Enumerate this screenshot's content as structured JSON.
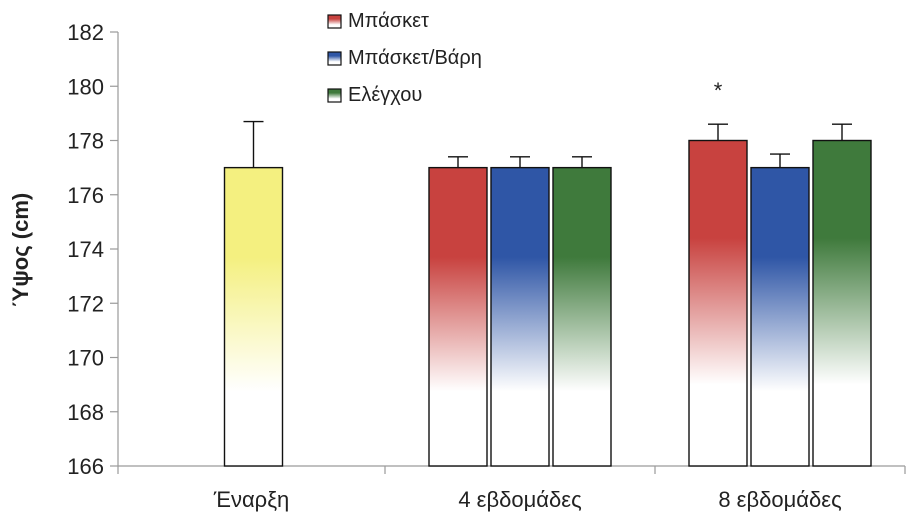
{
  "chart_data": {
    "type": "bar",
    "ylabel": "Ύψος (cm)",
    "ylim": [
      166,
      182
    ],
    "yticks": [
      "166",
      "168",
      "170",
      "172",
      "174",
      "176",
      "178",
      "180",
      "182"
    ],
    "categories": [
      "Έναρξη",
      "4 εβδομάδες",
      "8 εβδομάδες"
    ],
    "baseline": {
      "category": "Έναρξη",
      "value": 177.0,
      "error": 1.7,
      "color": "#f4f080"
    },
    "series": [
      {
        "name": "Μπάσκετ",
        "color": "#c8423f",
        "values": [
          null,
          177.0,
          178.0
        ],
        "errors": [
          null,
          0.4,
          0.6
        ]
      },
      {
        "name": "Μπάσκετ/Βάρη",
        "color": "#2f56a6",
        "values": [
          null,
          177.0,
          177.0
        ],
        "errors": [
          null,
          0.4,
          0.5
        ]
      },
      {
        "name": "Ελέγχου",
        "color": "#3f7a3c",
        "values": [
          null,
          177.0,
          178.0
        ],
        "errors": [
          null,
          0.4,
          0.6
        ]
      }
    ],
    "annotations": [
      {
        "text": "*",
        "category": "8 εβδομάδες",
        "series": "Μπάσκετ"
      }
    ],
    "legend_position": "top-center"
  }
}
